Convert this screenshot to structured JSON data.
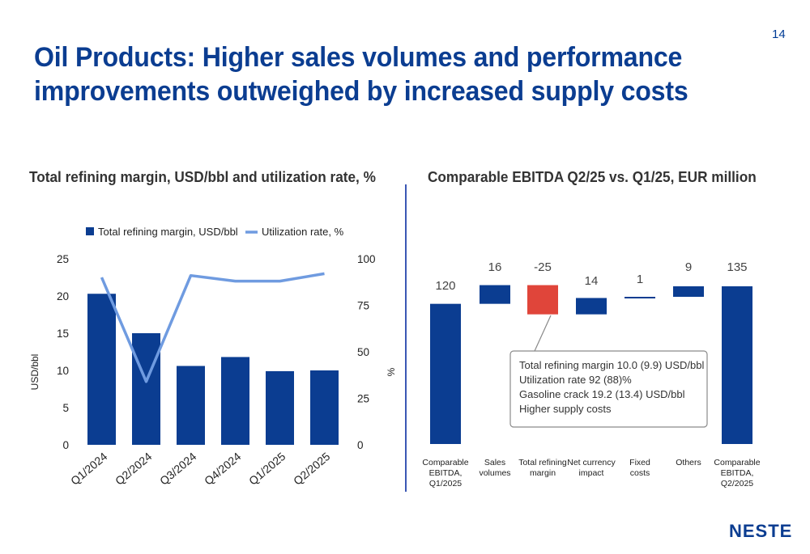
{
  "page_number": "14",
  "title_lines": [
    "Oil Products: Higher sales volumes and performance",
    "improvements outweighed by increased supply costs"
  ],
  "logo_text": "NESTE",
  "colors": {
    "title": "#0b3d91",
    "bar": "#0b3d91",
    "line": "#6f9be0",
    "negative": "#e0453a",
    "axis_text": "#222222"
  },
  "chart_data": [
    {
      "type": "bar",
      "title": "Total refining margin, USD/bbl and utilization rate, %",
      "categories": [
        "Q1/2024",
        "Q2/2024",
        "Q3/2024",
        "Q4/2024",
        "Q1/2025",
        "Q2/2025"
      ],
      "series": [
        {
          "name": "Total refining margin, USD/bbl",
          "type": "bar",
          "axis": "left",
          "values": [
            20.3,
            15.0,
            10.6,
            11.8,
            9.9,
            10.0
          ]
        },
        {
          "name": "Utilization rate, %",
          "type": "line",
          "axis": "right",
          "values": [
            90,
            34,
            91,
            88,
            88,
            92
          ]
        }
      ],
      "ylabel": "USD/bbl",
      "y2label": "%",
      "ylim": [
        0,
        25
      ],
      "y2lim": [
        0,
        100
      ],
      "yticks": [
        "0",
        "5",
        "10",
        "15",
        "20",
        "25"
      ],
      "y2ticks": [
        "0",
        "25",
        "50",
        "75",
        "100"
      ],
      "legend_position": "top",
      "grid": false
    },
    {
      "type": "bar",
      "subtype": "waterfall",
      "title": "Comparable EBITDA Q2/25 vs. Q1/25, EUR million",
      "categories": [
        "Comparable EBITDA, Q1/2025",
        "Sales volumes",
        "Total refining margin",
        "Net currency impact",
        "Fixed costs",
        "Others",
        "Comparable EBITDA, Q2/2025"
      ],
      "category_lines": [
        [
          "Comparable",
          "EBITDA,",
          "Q1/2025"
        ],
        [
          "Sales",
          "volumes"
        ],
        [
          "Total refining",
          "margin"
        ],
        [
          "Net currency",
          "impact"
        ],
        [
          "Fixed",
          "costs"
        ],
        [
          "Others"
        ],
        [
          "Comparable",
          "EBITDA,",
          "Q2/2025"
        ]
      ],
      "values": [
        120,
        16,
        -25,
        14,
        1,
        9,
        135
      ],
      "labels": [
        "120",
        "16",
        "-25",
        "14",
        "1",
        "9",
        "135"
      ],
      "kinds": [
        "total",
        "delta",
        "delta",
        "delta",
        "delta",
        "delta",
        "total"
      ],
      "callout": [
        "Total refining margin 10.0 (9.9) USD/bbl",
        "Utilization rate 92 (88)%",
        "Gasoline crack 19.2 (13.4) USD/bbl",
        "Higher supply costs"
      ],
      "callout_target": "Total refining margin"
    }
  ]
}
